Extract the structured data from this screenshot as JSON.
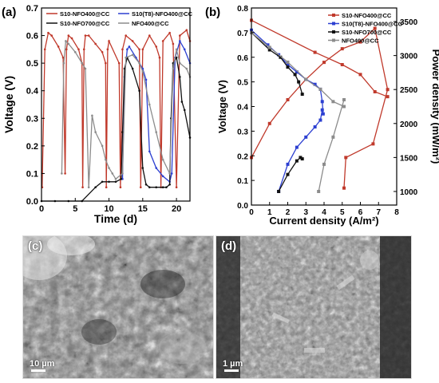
{
  "chart_data": [
    {
      "panel": "(a)",
      "type": "line",
      "xlabel": "Time (d)",
      "ylabel": "Voltage (V)",
      "xlim": [
        0,
        22
      ],
      "ylim": [
        0,
        0.7
      ],
      "xticks": [
        "0",
        "5",
        "10",
        "15",
        "20"
      ],
      "yticks": [
        "0.0",
        "0.1",
        "0.2",
        "0.3",
        "0.4",
        "0.5",
        "0.6",
        "0.7"
      ],
      "legend_position": "top",
      "series": [
        {
          "name": "S10-NFO400@CC",
          "color": "#c0392b",
          "x": [
            0.1,
            0.5,
            1.0,
            1.5,
            2.5,
            3.2,
            3.5,
            3.7,
            4.0,
            4.5,
            5.5,
            6.0,
            6.1,
            6.3,
            6.5,
            7.0,
            8.0,
            9.0,
            9.5,
            9.6,
            9.8,
            10.0,
            11.5,
            11.7,
            12.0,
            12.5,
            13.5,
            14.5,
            14.7,
            15.0,
            16.0,
            17.0,
            17.5,
            17.7,
            18.0,
            19.0,
            19.5,
            20.0,
            20.5,
            21.5,
            22.0
          ],
          "y": [
            0.05,
            0.55,
            0.61,
            0.6,
            0.56,
            0.52,
            0.1,
            0.55,
            0.6,
            0.59,
            0.55,
            0.5,
            0.05,
            0.55,
            0.6,
            0.6,
            0.57,
            0.54,
            0.5,
            0.05,
            0.55,
            0.58,
            0.5,
            0.05,
            0.55,
            0.6,
            0.58,
            0.55,
            0.05,
            0.55,
            0.6,
            0.56,
            0.52,
            0.05,
            0.58,
            0.61,
            0.57,
            0.05,
            0.6,
            0.62,
            0.58
          ]
        },
        {
          "name": "S10(T8)-NFO400@CC",
          "color": "#2c3fd1",
          "x": [
            12.0,
            12.3,
            12.7,
            13.0,
            14.0,
            15.0,
            15.5,
            16.0,
            17.0,
            18.0,
            19.0,
            19.3,
            19.8,
            20.5,
            21.2,
            22.0
          ],
          "y": [
            0.08,
            0.45,
            0.55,
            0.56,
            0.52,
            0.48,
            0.44,
            0.18,
            0.12,
            0.09,
            0.07,
            0.1,
            0.52,
            0.58,
            0.55,
            0.5
          ]
        },
        {
          "name": "S10-NFO700@CC",
          "color": "#111111",
          "x": [
            0.0,
            2.0,
            4.0,
            6.0,
            8.0,
            9.0,
            10.0,
            11.0,
            11.8,
            12.0,
            12.3,
            12.7,
            13.5,
            14.5,
            15.0,
            15.5,
            16.0,
            17.0,
            18.0,
            18.5,
            19.0,
            19.2,
            19.5,
            20.0,
            20.5,
            20.8,
            21.2,
            22.0
          ],
          "y": [
            0.0,
            0.0,
            0.0,
            0.0,
            0.05,
            0.07,
            0.07,
            0.07,
            0.08,
            0.25,
            0.48,
            0.52,
            0.48,
            0.4,
            0.12,
            0.06,
            0.05,
            0.05,
            0.05,
            0.05,
            0.06,
            0.3,
            0.5,
            0.52,
            0.45,
            0.36,
            0.33,
            0.23
          ]
        },
        {
          "name": "NFO400@CC",
          "color": "#8c8c8c",
          "x": [
            3.0,
            3.3,
            3.6,
            4.0,
            5.0,
            6.0,
            6.5,
            7.0,
            7.5,
            8.0,
            9.0,
            9.5,
            10.0,
            10.5,
            11.0,
            12.0,
            12.5,
            13.5,
            14.5,
            15.0,
            16.0,
            17.0,
            18.0,
            19.0,
            19.5,
            20.0,
            20.5,
            21.5,
            22.0
          ],
          "y": [
            0.1,
            0.5,
            0.58,
            0.57,
            0.54,
            0.5,
            0.48,
            0.05,
            0.31,
            0.25,
            0.2,
            0.15,
            0.12,
            0.1,
            0.08,
            0.1,
            0.52,
            0.53,
            0.5,
            0.47,
            0.35,
            0.25,
            0.15,
            0.1,
            0.48,
            0.55,
            0.5,
            0.48,
            0.45
          ]
        }
      ]
    },
    {
      "panel": "(b)",
      "type": "line",
      "xlabel": "Current density (A/m²)",
      "ylabel": "Voltage (V)",
      "ylabel_right": "Power density (mW/m²)",
      "xlim": [
        0,
        8
      ],
      "ylim": [
        0,
        0.8
      ],
      "ylim_right": [
        800,
        3700
      ],
      "xticks": [
        "0",
        "1",
        "2",
        "3",
        "4",
        "5",
        "6",
        "7",
        "8"
      ],
      "yticks": [
        "0.0",
        "0.1",
        "0.2",
        "0.3",
        "0.4",
        "0.5",
        "0.6",
        "0.7",
        "0.8"
      ],
      "yticks_right": [
        "1000",
        "1500",
        "2000",
        "2500",
        "3000",
        "3500"
      ],
      "legend_position": "top-right",
      "series": [
        {
          "name": "S10-NFO400@CC",
          "color": "#c0392b",
          "polarization": {
            "x": [
              0.0,
              3.5,
              5.0,
              6.0,
              6.8,
              7.5
            ],
            "y": [
              0.75,
              0.62,
              0.57,
              0.53,
              0.46,
              0.44
            ]
          },
          "power": {
            "x": [
              0.0,
              1.0,
              2.0,
              3.0,
              4.0,
              5.0,
              6.0,
              6.8,
              7.5,
              6.7,
              5.2,
              5.1
            ],
            "y": [
              1500,
              2000,
              2350,
              2650,
              2900,
              3100,
              3200,
              3400,
              2500,
              1700,
              1500,
              1050
            ]
          }
        },
        {
          "name": "S10(T8)-NFO400@CC",
          "color": "#2c3fd1",
          "polarization": {
            "x": [
              0.0,
              0.9,
              1.5,
              2.0,
              2.5,
              3.0,
              3.5,
              3.8,
              3.9,
              3.95
            ],
            "y": [
              0.71,
              0.65,
              0.61,
              0.57,
              0.54,
              0.51,
              0.49,
              0.47,
              0.42,
              0.37
            ]
          },
          "power": {
            "x": [
              1.5,
              2.0,
              2.5,
              3.0,
              3.5,
              3.8,
              3.9
            ],
            "y": [
              1000,
              1400,
              1650,
              1800,
              1950,
              2050,
              2200
            ]
          }
        },
        {
          "name": "S10-NFO700@CC",
          "color": "#111111",
          "polarization": {
            "x": [
              0.0,
              1.0,
              1.6,
              2.0,
              2.4,
              2.6,
              2.8
            ],
            "y": [
              0.7,
              0.63,
              0.6,
              0.56,
              0.53,
              0.5,
              0.45
            ]
          },
          "power": {
            "x": [
              1.5,
              2.0,
              2.5,
              2.7,
              2.8
            ],
            "y": [
              1000,
              1250,
              1450,
              1500,
              1480
            ]
          }
        },
        {
          "name": "NFO400@CC",
          "color": "#8c8c8c",
          "polarization": {
            "x": [
              0.0,
              1.0,
              2.0,
              3.0,
              3.8,
              4.5,
              5.1
            ],
            "y": [
              0.7,
              0.64,
              0.58,
              0.51,
              0.47,
              0.42,
              0.4
            ]
          },
          "power": {
            "x": [
              3.7,
              4.0,
              4.5,
              5.1
            ],
            "y": [
              1000,
              1400,
              1800,
              2350
            ]
          }
        }
      ]
    }
  ],
  "images": [
    {
      "panel": "(c)",
      "scale_text": "10 µm"
    },
    {
      "panel": "(d)",
      "scale_text": "1 µm"
    }
  ]
}
